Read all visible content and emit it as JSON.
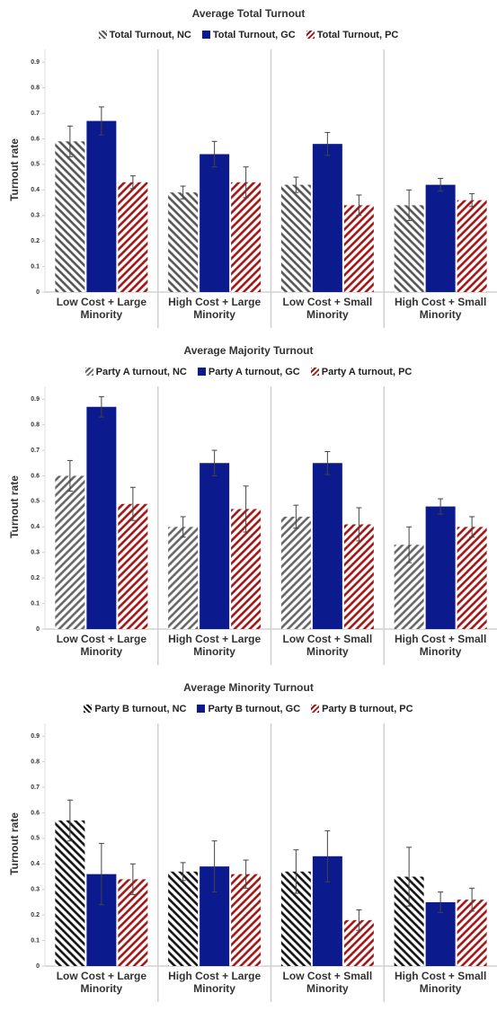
{
  "chart_data": [
    {
      "type": "bar",
      "title": "Average Total Turnout",
      "ylabel": "Turnout  rate",
      "categories": [
        "Low Cost + Large Minority",
        "High Cost + Large Minority",
        "Low Cost + Small Minority",
        "High Cost + Small Minority"
      ],
      "series": [
        {
          "name": "Total Turnout, NC",
          "color": "#555555",
          "pattern": "hatch-left",
          "values": [
            0.59,
            0.39,
            0.42,
            0.34
          ],
          "errors": [
            0.06,
            0.025,
            0.03,
            0.06
          ]
        },
        {
          "name": "Total Turnout, GC",
          "color": "#0b1a8c",
          "pattern": "solid",
          "values": [
            0.67,
            0.54,
            0.58,
            0.42
          ],
          "errors": [
            0.055,
            0.05,
            0.045,
            0.025
          ]
        },
        {
          "name": "Total Turnout, PC",
          "color": "#a01414",
          "pattern": "hatch-right",
          "values": [
            0.43,
            0.43,
            0.34,
            0.36
          ],
          "errors": [
            0.025,
            0.06,
            0.04,
            0.025
          ]
        }
      ],
      "ylim": [
        0,
        0.95
      ],
      "yticks": [
        0,
        0.1,
        0.2,
        0.3,
        0.4,
        0.5,
        0.6,
        0.7,
        0.8,
        0.9
      ]
    },
    {
      "type": "bar",
      "title": "Average Majority Turnout",
      "ylabel": "Turnout  rate",
      "categories": [
        "Low Cost + Large Minority",
        "High Cost + Large Minority",
        "Low Cost + Small Minority",
        "High Cost + Small Minority"
      ],
      "series": [
        {
          "name": "Party A turnout, NC",
          "color": "#666666",
          "pattern": "hatch-right",
          "values": [
            0.6,
            0.4,
            0.44,
            0.33
          ],
          "errors": [
            0.06,
            0.04,
            0.045,
            0.07
          ]
        },
        {
          "name": "Party A turnout, GC",
          "color": "#0b1a8c",
          "pattern": "solid",
          "values": [
            0.87,
            0.65,
            0.65,
            0.48
          ],
          "errors": [
            0.04,
            0.05,
            0.045,
            0.03
          ]
        },
        {
          "name": "Party A turnout, PC",
          "color": "#a01414",
          "pattern": "hatch-right",
          "values": [
            0.49,
            0.47,
            0.41,
            0.4
          ],
          "errors": [
            0.065,
            0.09,
            0.065,
            0.04
          ]
        }
      ],
      "ylim": [
        0,
        0.95
      ],
      "yticks": [
        0,
        0.1,
        0.2,
        0.3,
        0.4,
        0.5,
        0.6,
        0.7,
        0.8,
        0.9
      ]
    },
    {
      "type": "bar",
      "title": "Average Minority Turnout",
      "ylabel": "Turnout rate",
      "categories": [
        "Low Cost + Large Minority",
        "High Cost + Large Minority",
        "Low Cost + Small Minority",
        "High Cost + Small Minority"
      ],
      "series": [
        {
          "name": "Party B turnout, NC",
          "color": "#111111",
          "pattern": "hatch-left",
          "values": [
            0.57,
            0.37,
            0.37,
            0.35
          ],
          "errors": [
            0.08,
            0.035,
            0.085,
            0.115
          ]
        },
        {
          "name": "Party B turnout, GC",
          "color": "#0b1a8c",
          "pattern": "solid",
          "values": [
            0.36,
            0.39,
            0.43,
            0.25
          ],
          "errors": [
            0.12,
            0.1,
            0.1,
            0.04
          ]
        },
        {
          "name": "Party B turnout, PC",
          "color": "#a01414",
          "pattern": "hatch-right",
          "values": [
            0.34,
            0.36,
            0.18,
            0.26
          ],
          "errors": [
            0.06,
            0.055,
            0.04,
            0.045
          ]
        }
      ],
      "ylim": [
        0,
        0.95
      ],
      "yticks": [
        0,
        0.1,
        0.2,
        0.3,
        0.4,
        0.5,
        0.6,
        0.7,
        0.8,
        0.9
      ]
    }
  ]
}
